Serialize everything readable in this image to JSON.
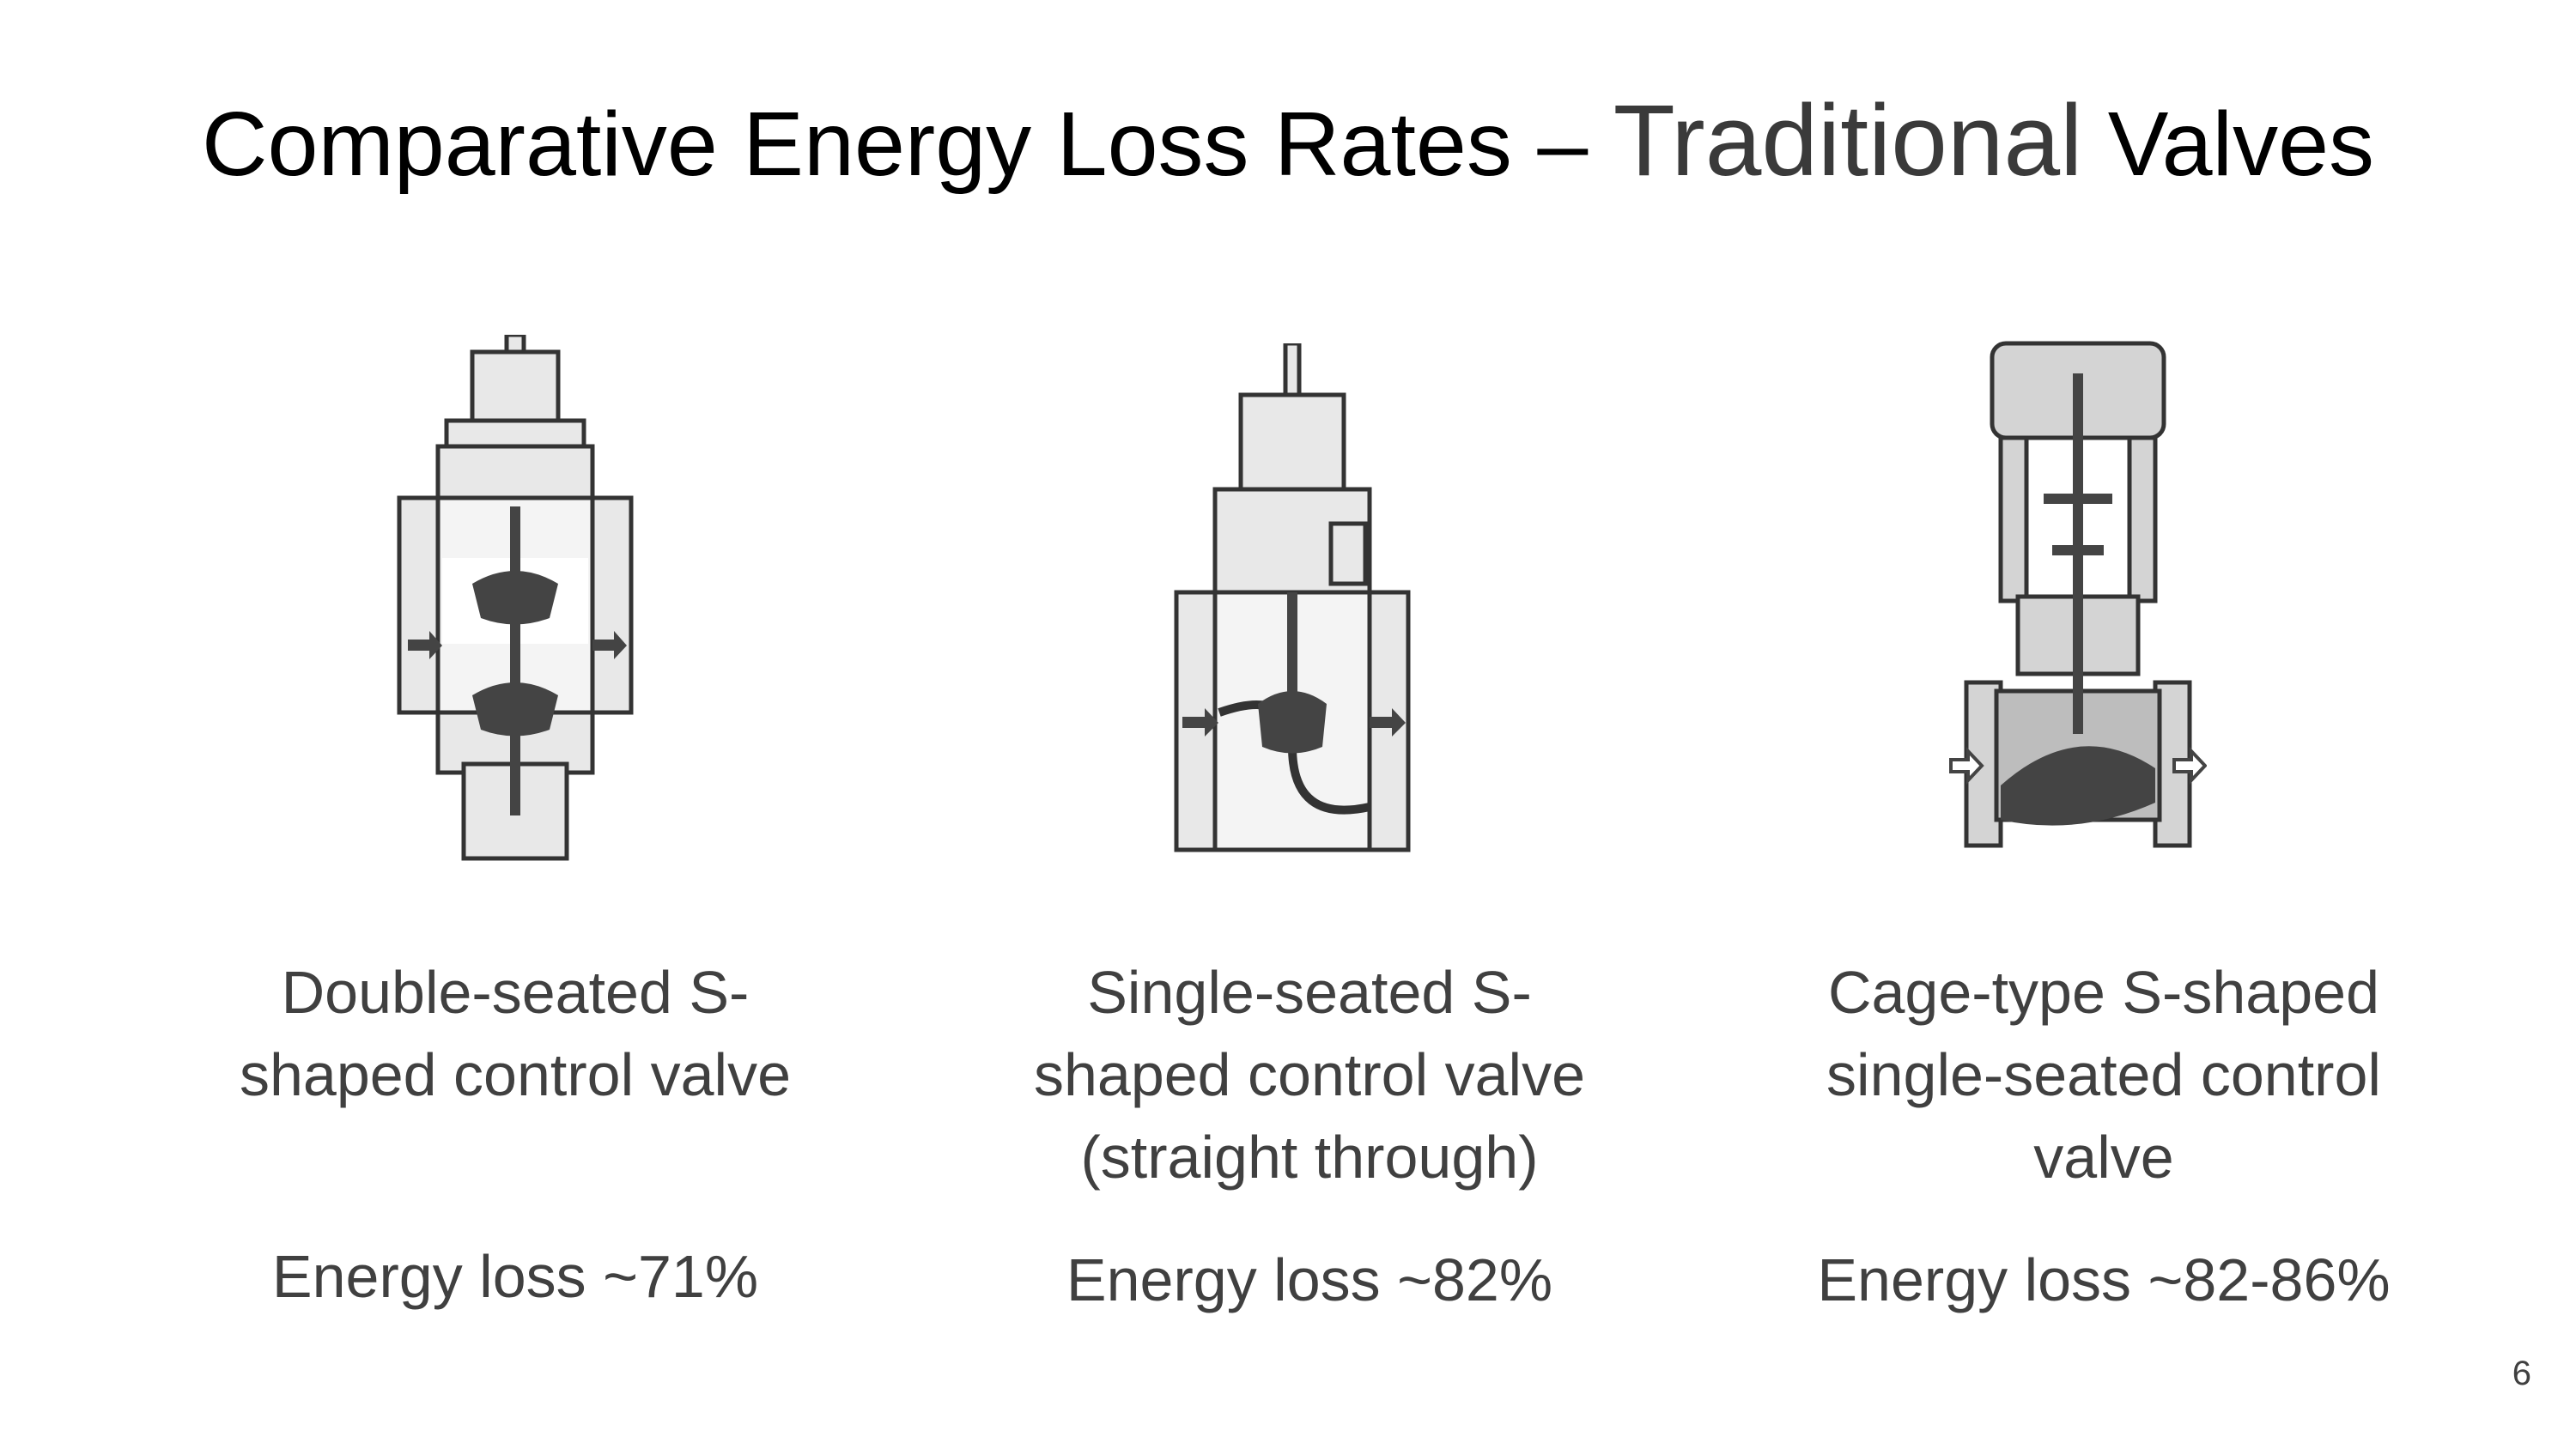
{
  "slide": {
    "title_main": "Comparative Energy Loss Rates – ",
    "title_emph": "Traditional",
    "title_tail": " Valves",
    "page_number": "6"
  },
  "valves": [
    {
      "caption": "Double-seated S-shaped control valve",
      "energy_loss": "Energy loss ~71%",
      "icon": "double-seated-valve-cross-section"
    },
    {
      "caption": "Single-seated S-shaped control valve  (straight through)",
      "energy_loss": "Energy loss ~82%",
      "icon": "single-seated-valve-cross-section"
    },
    {
      "caption": "Cage-type S-shaped single-seated  control valve",
      "energy_loss": "Energy loss ~82-86%",
      "icon": "cage-type-valve-cross-section"
    }
  ]
}
